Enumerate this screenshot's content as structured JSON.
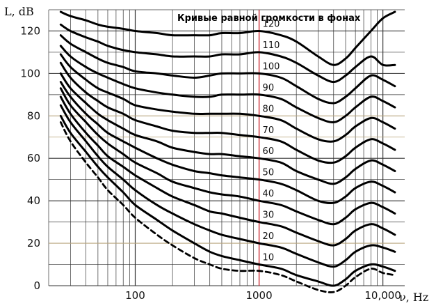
{
  "chart_data": {
    "type": "line",
    "title": "Кривые равной громкости в фонах",
    "xlabel": "ν, Hz",
    "ylabel": "L, dB",
    "xscale": "log",
    "xlim": [
      20,
      15000
    ],
    "ylim": [
      0,
      130
    ],
    "grid": true,
    "x_tick_labels": [
      {
        "value": 100,
        "label": "100"
      },
      {
        "value": 1000,
        "label": "1000",
        "color": "#e0202a"
      },
      {
        "value": 10000,
        "label": "10,000"
      }
    ],
    "y_tick_labels": [
      {
        "value": 0,
        "label": "0"
      },
      {
        "value": 20,
        "label": "20"
      },
      {
        "value": 40,
        "label": "40"
      },
      {
        "value": 60,
        "label": "60"
      },
      {
        "value": 80,
        "label": "80"
      },
      {
        "value": 100,
        "label": "100"
      },
      {
        "value": 120,
        "label": "120"
      }
    ],
    "colors": {
      "curves": "#000000",
      "grid_line": "#333333",
      "accent_line_1000hz": "#e0202a",
      "accent_horizontal": "#b8a47c"
    },
    "x": [
      25,
      30,
      40,
      50,
      60,
      80,
      100,
      150,
      200,
      300,
      400,
      500,
      700,
      1000,
      1500,
      2000,
      3000,
      4000,
      5000,
      6000,
      8000,
      10000,
      12500
    ],
    "series": [
      {
        "name": "120",
        "values": [
          129,
          127,
          125,
          123,
          122,
          121,
          120,
          119,
          118,
          118,
          118,
          119,
          119,
          120,
          118,
          115,
          108,
          104,
          107,
          112,
          120,
          126,
          129
        ]
      },
      {
        "name": "110",
        "values": [
          123,
          120,
          117,
          115,
          113,
          111,
          110,
          109,
          108,
          108,
          108,
          109,
          109,
          110,
          108,
          105,
          99,
          96,
          99,
          103,
          108,
          104,
          104
        ]
      },
      {
        "name": "100",
        "values": [
          118,
          114,
          110,
          107,
          105,
          103,
          101,
          100,
          99,
          98,
          99,
          100,
          100,
          100,
          98,
          94,
          88,
          86,
          89,
          93,
          99,
          97,
          94
        ]
      },
      {
        "name": "90",
        "values": [
          113,
          108,
          103,
          100,
          98,
          95,
          93,
          91,
          90,
          89,
          89,
          90,
          90,
          90,
          88,
          84,
          79,
          77,
          80,
          84,
          89,
          87,
          84
        ]
      },
      {
        "name": "80",
        "values": [
          109,
          103,
          97,
          93,
          91,
          88,
          85,
          83,
          82,
          81,
          81,
          81,
          81,
          80,
          78,
          74,
          69,
          68,
          71,
          75,
          79,
          77,
          74
        ]
      },
      {
        "name": "70",
        "values": [
          105,
          98,
          91,
          87,
          84,
          81,
          78,
          75,
          73,
          72,
          72,
          72,
          71,
          70,
          68,
          64,
          59,
          58,
          61,
          65,
          69,
          67,
          64
        ]
      },
      {
        "name": "60",
        "values": [
          100,
          93,
          86,
          81,
          78,
          74,
          71,
          68,
          65,
          63,
          62,
          62,
          61,
          60,
          58,
          54,
          50,
          48,
          51,
          55,
          59,
          57,
          54
        ]
      },
      {
        "name": "50",
        "values": [
          96,
          89,
          81,
          76,
          72,
          68,
          65,
          60,
          57,
          54,
          53,
          52,
          51,
          50,
          48,
          45,
          40,
          39,
          42,
          46,
          49,
          47,
          44
        ]
      },
      {
        "name": "40",
        "values": [
          93,
          85,
          77,
          71,
          67,
          62,
          58,
          53,
          49,
          46,
          44,
          43,
          42,
          40,
          38,
          35,
          31,
          29,
          32,
          36,
          39,
          37,
          34
        ]
      },
      {
        "name": "30",
        "values": [
          89,
          81,
          72,
          66,
          61,
          56,
          52,
          46,
          42,
          38,
          35,
          34,
          32,
          30,
          28,
          25,
          21,
          19,
          22,
          26,
          29,
          27,
          24
        ]
      },
      {
        "name": "20",
        "values": [
          85,
          77,
          68,
          61,
          56,
          50,
          45,
          38,
          34,
          29,
          26,
          24,
          22,
          20,
          18,
          15,
          11,
          9,
          12,
          16,
          19,
          18,
          16
        ]
      },
      {
        "name": "10",
        "values": [
          80,
          72,
          63,
          56,
          51,
          44,
          38,
          31,
          26,
          20,
          16,
          14,
          12,
          10,
          8,
          5,
          2,
          0,
          3,
          7,
          10,
          9,
          7
        ]
      },
      {
        "name": "",
        "dashed": true,
        "values": [
          77,
          68,
          58,
          51,
          45,
          38,
          32,
          24,
          19,
          13,
          10,
          8,
          7,
          7,
          5,
          2,
          -2,
          -3,
          0,
          4,
          8,
          6,
          5
        ]
      }
    ]
  }
}
